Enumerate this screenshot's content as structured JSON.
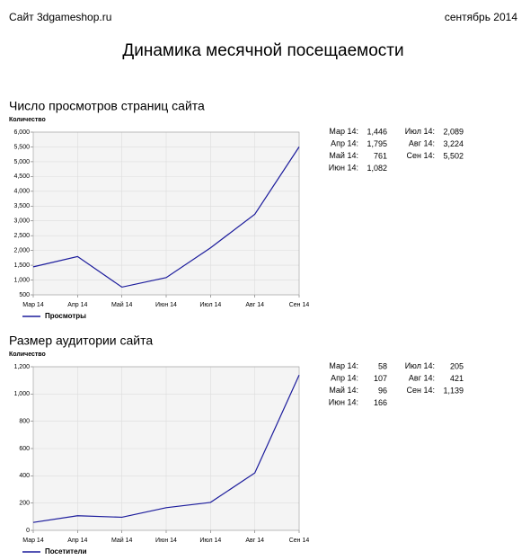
{
  "header": {
    "site": "Сайт 3dgameshop.ru",
    "period": "сентябрь 2014",
    "title": "Динамика месячной посещаемости"
  },
  "chart_data": [
    {
      "type": "line",
      "title": "Число просмотров страниц сайта",
      "ylabel": "Количество",
      "categories": [
        "Мар 14",
        "Апр 14",
        "Май 14",
        "Июн 14",
        "Июл 14",
        "Авг 14",
        "Сен 14"
      ],
      "series": [
        {
          "name": "Просмотры",
          "color": "#1c1c9c",
          "values": [
            1446,
            1795,
            761,
            1082,
            2089,
            3224,
            5502
          ],
          "value_labels": [
            "1,446",
            "1,795",
            "761",
            "1,082",
            "2,089",
            "3,224",
            "5,502"
          ]
        }
      ],
      "ylim": [
        500,
        6000
      ],
      "yticks": [
        500,
        {
          "value": 1000,
          "label": "1,000"
        },
        {
          "value": 1500,
          "label": "1,500"
        },
        {
          "value": 2000,
          "label": "2,000"
        },
        {
          "value": 2500,
          "label": "2,500"
        },
        {
          "value": 3000,
          "label": "3,000"
        },
        {
          "value": 3500,
          "label": "3,500"
        },
        {
          "value": 4000,
          "label": "4,000"
        },
        {
          "value": 4500,
          "label": "4,500"
        },
        {
          "value": 5000,
          "label": "5,000"
        },
        {
          "value": 5500,
          "label": "5,500"
        },
        {
          "value": 6000,
          "label": "6,000"
        }
      ],
      "grid": true,
      "legend": "bottom-left"
    },
    {
      "type": "line",
      "title": "Размер аудитории сайта",
      "ylabel": "Количество",
      "categories": [
        "Мар 14",
        "Апр 14",
        "Май 14",
        "Июн 14",
        "Июл 14",
        "Авг 14",
        "Сен 14"
      ],
      "series": [
        {
          "name": "Посетители",
          "color": "#1c1c9c",
          "values": [
            58,
            107,
            96,
            166,
            205,
            421,
            1139
          ],
          "value_labels": [
            "58",
            "107",
            "96",
            "166",
            "205",
            "421",
            "1,139"
          ]
        }
      ],
      "ylim": [
        0,
        1200
      ],
      "yticks": [
        0,
        200,
        400,
        600,
        800,
        {
          "value": 1000,
          "label": "1,000"
        },
        {
          "value": 1200,
          "label": "1,200"
        }
      ],
      "grid": true,
      "legend": "bottom-left"
    }
  ]
}
